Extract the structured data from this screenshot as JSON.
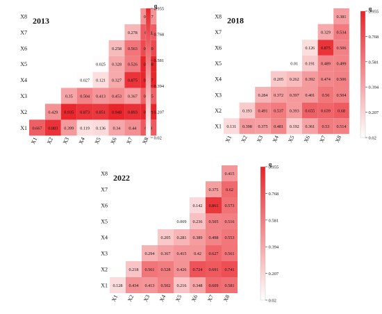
{
  "colors": {
    "low": "#ffffff",
    "high": "#e8242a",
    "text": "#111111"
  },
  "chart_data": [
    {
      "type": "heatmap",
      "title": "2013",
      "labels": [
        "X1",
        "X2",
        "X3",
        "X4",
        "X5",
        "X6",
        "X7",
        "X8"
      ],
      "colorbar": {
        "label": "q",
        "range": [
          0.02,
          0.955
        ],
        "ticks": [
          "0.955",
          "0.768",
          "0.581",
          "0.394",
          "0.207",
          "0.02"
        ]
      },
      "rows": [
        [
          "0.667",
          "0.883",
          "0.399",
          "0.119",
          "0.136",
          "0.34",
          "0.44",
          "0.69"
        ],
        [
          "0.429",
          "0.935",
          "0.873",
          "0.851",
          "0.948",
          "0.893",
          "0.951"
        ],
        [
          "0.35",
          "0.504",
          "0.413",
          "0.453",
          "0.367",
          "0.645"
        ],
        [
          "0.027",
          "0.121",
          "0.327",
          "0.875",
          "0.947"
        ],
        [
          "0.025",
          "0.328",
          "0.526",
          "0.948"
        ],
        [
          "0.258",
          "0.563",
          "0.769"
        ],
        [
          "0.278",
          "0.68"
        ],
        [
          "0.427"
        ]
      ]
    },
    {
      "type": "heatmap",
      "title": "2018",
      "labels": [
        "X1",
        "X2",
        "X3",
        "X4",
        "X5",
        "X6",
        "X7",
        "X8"
      ],
      "colorbar": {
        "label": "q",
        "range": [
          0.02,
          0.955
        ],
        "ticks": [
          "0.955",
          "0.768",
          "0.581",
          "0.394",
          "0.207",
          "0.02"
        ]
      },
      "rows": [
        [
          "0.131",
          "0.398",
          "0.375",
          "0.481",
          "0.192",
          "0.361",
          "0.53",
          "0.514"
        ],
        [
          "0.193",
          "0.491",
          "0.537",
          "0.393",
          "0.655",
          "0.639",
          "0.68"
        ],
        [
          "0.284",
          "0.372",
          "0.397",
          "0.401",
          "0.56",
          "0.504"
        ],
        [
          "0.205",
          "0.262",
          "0.392",
          "0.474",
          "0.506"
        ],
        [
          "0.01",
          "0.191",
          "0.489",
          "0.499"
        ],
        [
          "0.126",
          "0.875",
          "0.506"
        ],
        [
          "0.329",
          "0.534"
        ],
        [
          "0.381"
        ]
      ]
    },
    {
      "type": "heatmap",
      "title": "2022",
      "labels": [
        "X1",
        "X2",
        "X3",
        "X4",
        "X5",
        "X6",
        "X7",
        "X8"
      ],
      "colorbar": {
        "label": "q",
        "range": [
          0.02,
          0.955
        ],
        "ticks": [
          "0.955",
          "0.768",
          "0.581",
          "0.394",
          "0.207",
          "0.02"
        ]
      },
      "rows": [
        [
          "0.128",
          "0.434",
          "0.413",
          "0.502",
          "0.216",
          "0.348",
          "0.609",
          "0.581"
        ],
        [
          "0.218",
          "0.561",
          "0.528",
          "0.426",
          "0.724",
          "0.691",
          "0.741"
        ],
        [
          "0.294",
          "0.367",
          "0.415",
          "0.42",
          "0.627",
          "0.561"
        ],
        [
          "0.205",
          "0.281",
          "0.389",
          "0.498",
          "0.553"
        ],
        [
          "0.009",
          "0.236",
          "0.505",
          "0.516"
        ],
        [
          "0.142",
          "0.861",
          "0.573"
        ],
        [
          "0.375",
          "0.62"
        ],
        [
          "0.415"
        ]
      ]
    }
  ]
}
